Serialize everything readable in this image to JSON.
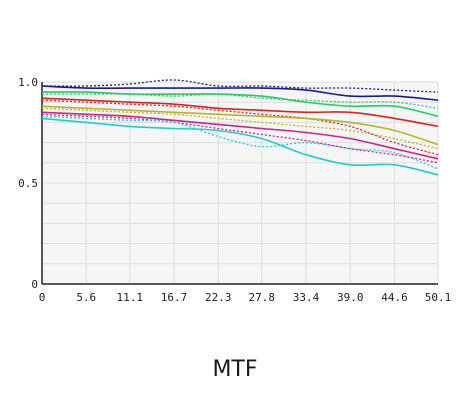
{
  "chart_data": {
    "type": "line",
    "title": "MTF",
    "xlabel": "",
    "ylabel": "",
    "xlim": [
      0,
      50.1
    ],
    "ylim": [
      0,
      1.0
    ],
    "grid": true,
    "legend": "none",
    "x_ticks": [
      "0",
      "5.6",
      "11.1",
      "16.7",
      "22.3",
      "27.8",
      "33.4",
      "39.0",
      "44.6",
      "50.1"
    ],
    "y_ticks": [
      "0",
      "0.5",
      "1.0"
    ],
    "x": [
      0,
      5.6,
      11.1,
      16.7,
      22.3,
      27.8,
      33.4,
      39.0,
      44.6,
      50.1
    ],
    "series": [
      {
        "color": "#1a1a8c",
        "style": "solid",
        "values": [
          0.98,
          0.97,
          0.97,
          0.97,
          0.97,
          0.97,
          0.96,
          0.93,
          0.93,
          0.91
        ]
      },
      {
        "color": "#1a1a8c",
        "style": "dotted",
        "values": [
          0.98,
          0.98,
          0.99,
          1.01,
          0.98,
          0.98,
          0.97,
          0.97,
          0.96,
          0.95
        ]
      },
      {
        "color": "#22cc66",
        "style": "solid",
        "values": [
          0.95,
          0.95,
          0.94,
          0.94,
          0.94,
          0.93,
          0.9,
          0.88,
          0.88,
          0.83
        ]
      },
      {
        "color": "#22cc66",
        "style": "dotted",
        "values": [
          0.94,
          0.94,
          0.94,
          0.93,
          0.94,
          0.92,
          0.91,
          0.9,
          0.9,
          0.87
        ]
      },
      {
        "color": "#dd2222",
        "style": "solid",
        "values": [
          0.92,
          0.91,
          0.9,
          0.89,
          0.87,
          0.86,
          0.85,
          0.85,
          0.82,
          0.78
        ]
      },
      {
        "color": "#dd2222",
        "style": "dotted",
        "values": [
          0.91,
          0.9,
          0.89,
          0.88,
          0.86,
          0.84,
          0.82,
          0.78,
          0.7,
          0.64
        ]
      },
      {
        "color": "#b5b52a",
        "style": "solid",
        "values": [
          0.88,
          0.87,
          0.86,
          0.85,
          0.84,
          0.83,
          0.82,
          0.8,
          0.76,
          0.69
        ]
      },
      {
        "color": "#b5b52a",
        "style": "dotted",
        "values": [
          0.87,
          0.86,
          0.85,
          0.84,
          0.82,
          0.8,
          0.78,
          0.76,
          0.72,
          0.67
        ]
      },
      {
        "color": "#d0208c",
        "style": "solid",
        "values": [
          0.85,
          0.84,
          0.83,
          0.81,
          0.79,
          0.77,
          0.75,
          0.72,
          0.67,
          0.62
        ]
      },
      {
        "color": "#d0208c",
        "style": "dotted",
        "values": [
          0.84,
          0.83,
          0.82,
          0.8,
          0.77,
          0.74,
          0.71,
          0.67,
          0.64,
          0.6
        ]
      },
      {
        "color": "#22cccc",
        "style": "solid",
        "values": [
          0.82,
          0.8,
          0.78,
          0.77,
          0.76,
          0.72,
          0.64,
          0.59,
          0.59,
          0.54
        ]
      },
      {
        "color": "#22cccc",
        "style": "dotted",
        "values": [
          0.83,
          0.82,
          0.81,
          0.8,
          0.73,
          0.68,
          0.7,
          0.67,
          0.65,
          0.57
        ]
      }
    ]
  }
}
